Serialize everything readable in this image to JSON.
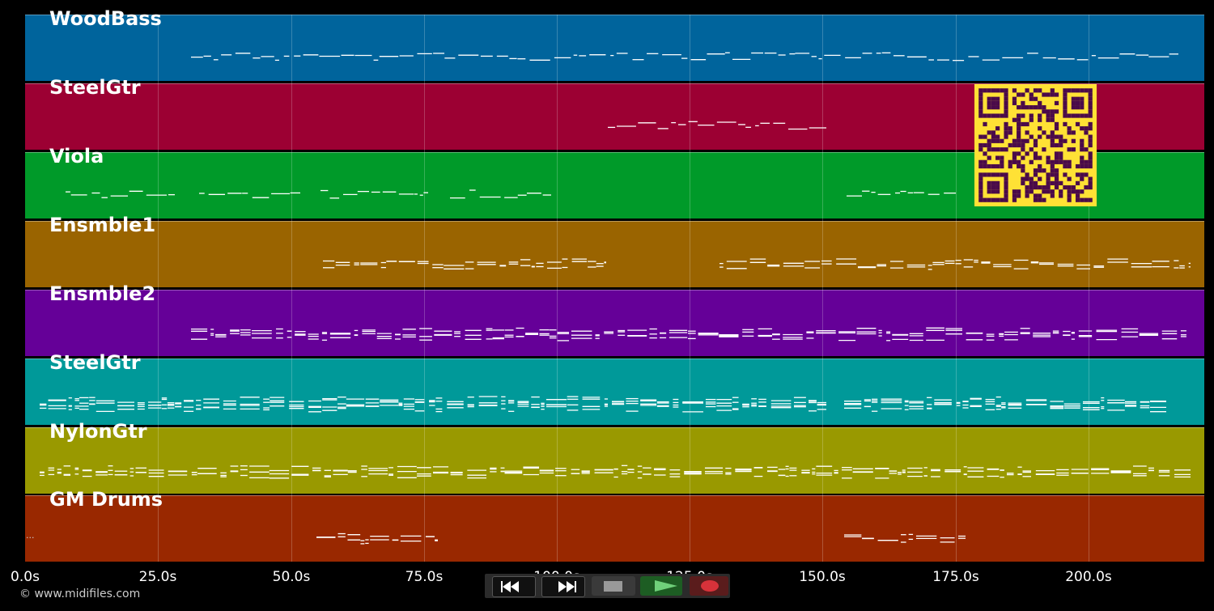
{
  "tracks": [
    {
      "name": "WoodBass",
      "color": "#00649c"
    },
    {
      "name": "SteelGtr",
      "color": "#9c0033"
    },
    {
      "name": "Viola",
      "color": "#009a29"
    },
    {
      "name": "Ensmble1",
      "color": "#9a6400"
    },
    {
      "name": "Ensmble2",
      "color": "#650098"
    },
    {
      "name": "SteelGtr",
      "color": "#009999"
    },
    {
      "name": "NylonGtr",
      "color": "#999900"
    },
    {
      "name": "GM Drums",
      "color": "#992800"
    }
  ],
  "timeline": {
    "ticks": [
      "0.0s",
      "25.0s",
      "50.0s",
      "75.0s",
      "100.0s",
      "125.0s",
      "150.0s",
      "175.0s",
      "200.0s"
    ]
  },
  "transport": {
    "rewind_icon": "rewind-icon",
    "forward_icon": "fast-forward-icon",
    "stop_icon": "stop-icon",
    "play_icon": "play-icon",
    "record_icon": "record-icon"
  },
  "copyright": "© www.midifiles.com",
  "colors": {
    "background": "#000000",
    "qr_bg": "#ffe135",
    "qr_fg": "#4a0a4a"
  }
}
